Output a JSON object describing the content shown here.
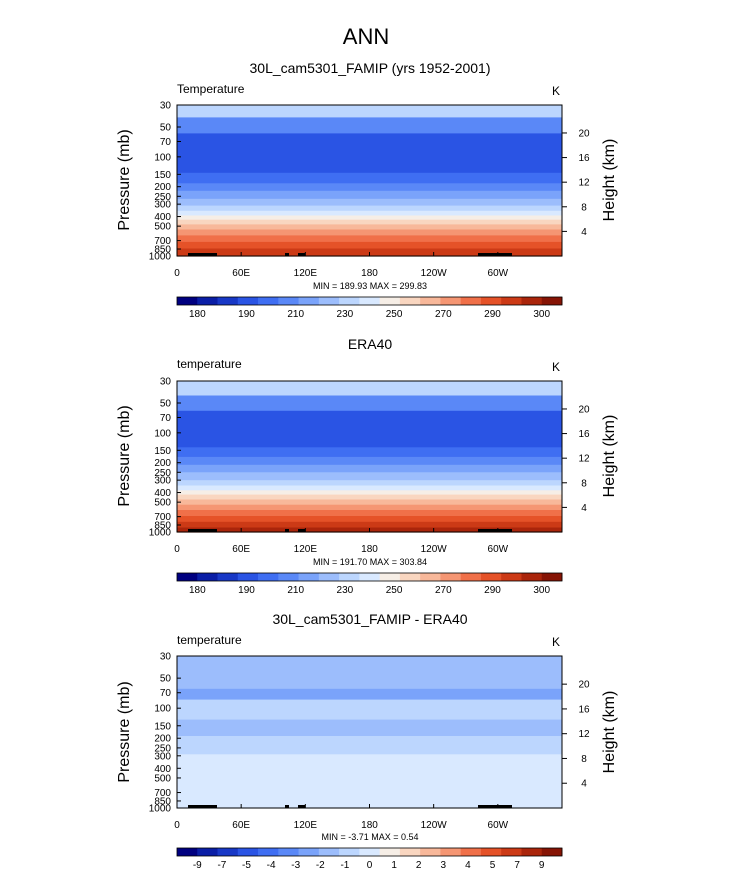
{
  "figure": {
    "title": "ANN"
  },
  "colors": {
    "temperature_levels": [
      "#000080",
      "#0a1ea6",
      "#1838c6",
      "#2a54e4",
      "#3f6ef2",
      "#5a88f7",
      "#7aa3fa",
      "#9cbdfc",
      "#bcd6fe",
      "#d9e9ff",
      "#f6eee6",
      "#f9d6c0",
      "#f8b89a",
      "#f59673",
      "#f07049",
      "#e55228",
      "#cc3a16",
      "#aa250b",
      "#861405"
    ],
    "difference_levels": [
      "#000080",
      "#0a1ea6",
      "#1838c6",
      "#2a54e4",
      "#3f6ef2",
      "#5a88f7",
      "#7aa3fa",
      "#9cbdfc",
      "#bcd6fe",
      "#d9e9ff",
      "#f6eee6",
      "#f9d6c0",
      "#f8b89a",
      "#f59673",
      "#f07049",
      "#e55228",
      "#cc3a16",
      "#aa250b",
      "#861405"
    ]
  },
  "chart_data": [
    {
      "type": "heatmap",
      "title": "30L_cam5301_FAMIP (yrs 1952-2001)",
      "variable_label": "Temperature",
      "units": "K",
      "ylabel": "Pressure (mb)",
      "ylabel_right": "Height (km)",
      "pressure_ticks": [
        "30",
        "50",
        "70",
        "100",
        "150",
        "200",
        "250",
        "300",
        "400",
        "500",
        "700",
        "850",
        "1000"
      ],
      "height_ticks": [
        "20",
        "16",
        "12",
        "8",
        "4"
      ],
      "lon_ticks": [
        "0",
        "60E",
        "120E",
        "180",
        "120W",
        "60W"
      ],
      "stats": "MIN = 189.93  MAX = 299.83",
      "colorbar_labels": [
        "180",
        "190",
        "210",
        "230",
        "250",
        "270",
        "290",
        "300"
      ],
      "levels": [
        {
          "p_top": 30,
          "p_bot": 40,
          "color_index": 8
        },
        {
          "p_top": 40,
          "p_bot": 58,
          "color_index": 5
        },
        {
          "p_top": 58,
          "p_bot": 145,
          "color_index": 3
        },
        {
          "p_top": 145,
          "p_bot": 185,
          "color_index": 4
        },
        {
          "p_top": 185,
          "p_bot": 220,
          "color_index": 5
        },
        {
          "p_top": 220,
          "p_bot": 265,
          "color_index": 6
        },
        {
          "p_top": 265,
          "p_bot": 310,
          "color_index": 7
        },
        {
          "p_top": 310,
          "p_bot": 350,
          "color_index": 8
        },
        {
          "p_top": 350,
          "p_bot": 390,
          "color_index": 9
        },
        {
          "p_top": 390,
          "p_bot": 430,
          "color_index": 10
        },
        {
          "p_top": 430,
          "p_bot": 480,
          "color_index": 11
        },
        {
          "p_top": 480,
          "p_bot": 540,
          "color_index": 12
        },
        {
          "p_top": 540,
          "p_bot": 620,
          "color_index": 13
        },
        {
          "p_top": 620,
          "p_bot": 720,
          "color_index": 14
        },
        {
          "p_top": 720,
          "p_bot": 840,
          "color_index": 15
        },
        {
          "p_top": 840,
          "p_bot": 1000,
          "color_index": 16
        }
      ]
    },
    {
      "type": "heatmap",
      "title": "ERA40",
      "variable_label": "temperature",
      "units": "K",
      "ylabel": "Pressure (mb)",
      "ylabel_right": "Height (km)",
      "pressure_ticks": [
        "30",
        "50",
        "70",
        "100",
        "150",
        "200",
        "250",
        "300",
        "400",
        "500",
        "700",
        "850",
        "1000"
      ],
      "height_ticks": [
        "20",
        "16",
        "12",
        "8",
        "4"
      ],
      "lon_ticks": [
        "0",
        "60E",
        "120E",
        "180",
        "120W",
        "60W"
      ],
      "stats": "MIN = 191.70  MAX = 303.84",
      "colorbar_labels": [
        "180",
        "190",
        "210",
        "230",
        "250",
        "270",
        "290",
        "300"
      ],
      "levels": [
        {
          "p_top": 30,
          "p_bot": 42,
          "color_index": 8
        },
        {
          "p_top": 42,
          "p_bot": 60,
          "color_index": 5
        },
        {
          "p_top": 60,
          "p_bot": 140,
          "color_index": 3
        },
        {
          "p_top": 140,
          "p_bot": 175,
          "color_index": 4
        },
        {
          "p_top": 175,
          "p_bot": 210,
          "color_index": 5
        },
        {
          "p_top": 210,
          "p_bot": 250,
          "color_index": 6
        },
        {
          "p_top": 250,
          "p_bot": 300,
          "color_index": 7
        },
        {
          "p_top": 300,
          "p_bot": 340,
          "color_index": 8
        },
        {
          "p_top": 340,
          "p_bot": 380,
          "color_index": 9
        },
        {
          "p_top": 380,
          "p_bot": 420,
          "color_index": 10
        },
        {
          "p_top": 420,
          "p_bot": 470,
          "color_index": 11
        },
        {
          "p_top": 470,
          "p_bot": 530,
          "color_index": 12
        },
        {
          "p_top": 530,
          "p_bot": 600,
          "color_index": 13
        },
        {
          "p_top": 600,
          "p_bot": 690,
          "color_index": 14
        },
        {
          "p_top": 690,
          "p_bot": 790,
          "color_index": 15
        },
        {
          "p_top": 790,
          "p_bot": 900,
          "color_index": 16
        },
        {
          "p_top": 900,
          "p_bot": 1000,
          "color_index": 17
        }
      ]
    },
    {
      "type": "heatmap",
      "title": "30L_cam5301_FAMIP - ERA40",
      "variable_label": "temperature",
      "units": "K",
      "ylabel": "Pressure (mb)",
      "ylabel_right": "Height (km)",
      "pressure_ticks": [
        "30",
        "50",
        "70",
        "100",
        "150",
        "200",
        "250",
        "300",
        "400",
        "500",
        "700",
        "850",
        "1000"
      ],
      "height_ticks": [
        "20",
        "16",
        "12",
        "8",
        "4"
      ],
      "lon_ticks": [
        "0",
        "60E",
        "120E",
        "180",
        "120W",
        "60W"
      ],
      "stats": "MIN = -3.71  MAX =   0.54",
      "colorbar_labels": [
        "-9",
        "-7",
        "-5",
        "-4",
        "-3",
        "-2",
        "-1",
        "0",
        "1",
        "2",
        "3",
        "4",
        "5",
        "7",
        "9"
      ],
      "levels": [
        {
          "p_top": 30,
          "p_bot": 64,
          "color_index": 7
        },
        {
          "p_top": 64,
          "p_bot": 82,
          "color_index": 6
        },
        {
          "p_top": 82,
          "p_bot": 130,
          "color_index": 8
        },
        {
          "p_top": 130,
          "p_bot": 190,
          "color_index": 7
        },
        {
          "p_top": 190,
          "p_bot": 290,
          "color_index": 8
        },
        {
          "p_top": 290,
          "p_bot": 1000,
          "color_index": 9
        }
      ]
    }
  ]
}
